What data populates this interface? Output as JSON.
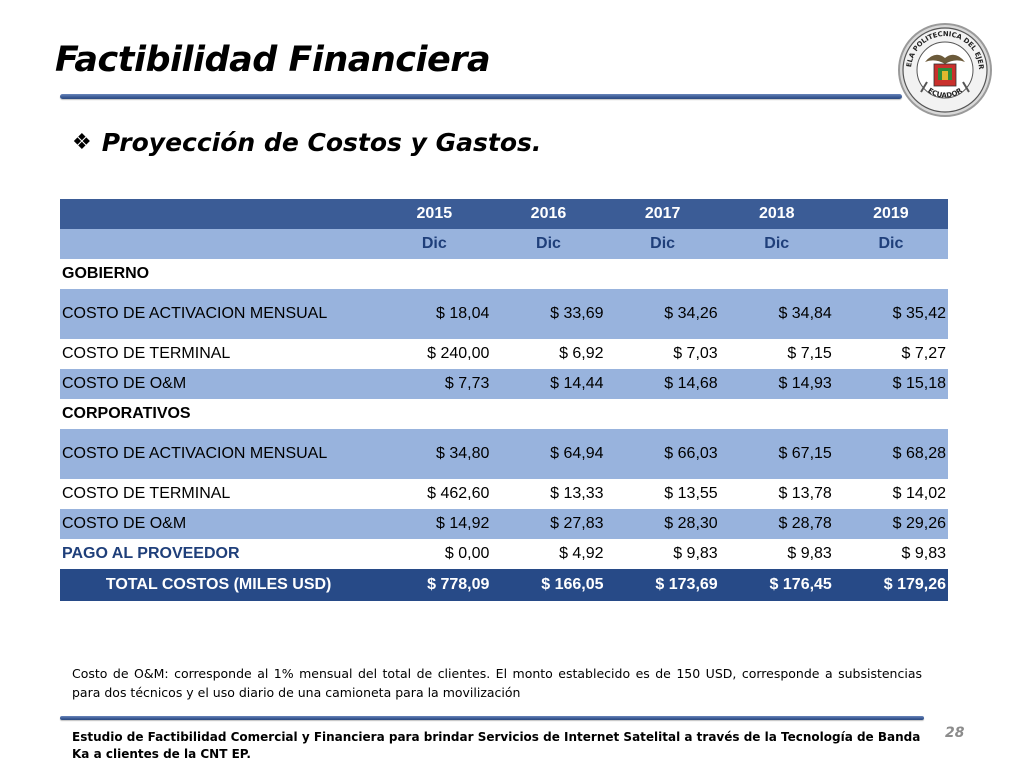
{
  "slide": {
    "title": "Factibilidad Financiera",
    "subtitle": "Proyección de Costos y Gastos.",
    "bullet_glyph": "❖",
    "page_number": "28"
  },
  "seal": {
    "text_top": "ESCUELA POLITECNICA DEL EJERCITO",
    "text_bottom": "ECUADOR"
  },
  "table": {
    "years": [
      "2015",
      "2016",
      "2017",
      "2018",
      "2019"
    ],
    "months": [
      "Dic",
      "Dic",
      "Dic",
      "Dic",
      "Dic"
    ],
    "sections": [
      {
        "name": "GOBIERNO",
        "rows": [
          {
            "label": "COSTO DE ACTIVACION MENSUAL",
            "values": [
              "$ 18,04",
              "$ 33,69",
              "$ 34,26",
              "$ 34,84",
              "$ 35,42"
            ]
          },
          {
            "label": "COSTO DE TERMINAL",
            "values": [
              "$ 240,00",
              "$ 6,92",
              "$ 7,03",
              "$ 7,15",
              "$ 7,27"
            ]
          },
          {
            "label": "COSTO DE O&M",
            "values": [
              "$ 7,73",
              "$ 14,44",
              "$ 14,68",
              "$ 14,93",
              "$ 15,18"
            ]
          }
        ]
      },
      {
        "name": "CORPORATIVOS",
        "rows": [
          {
            "label": "COSTO DE ACTIVACION MENSUAL",
            "values": [
              "$ 34,80",
              "$ 64,94",
              "$ 66,03",
              "$ 67,15",
              "$ 68,28"
            ]
          },
          {
            "label": "COSTO DE TERMINAL",
            "values": [
              "$ 462,60",
              "$ 13,33",
              "$ 13,55",
              "$ 13,78",
              "$ 14,02"
            ]
          },
          {
            "label": "COSTO DE O&M",
            "values": [
              "$ 14,92",
              "$ 27,83",
              "$ 28,30",
              "$ 28,78",
              "$ 29,26"
            ]
          }
        ]
      }
    ],
    "pago": {
      "label": "PAGO AL PROVEEDOR",
      "values": [
        "$ 0,00",
        "$ 4,92",
        "$ 9,83",
        "$ 9,83",
        "$ 9,83"
      ]
    },
    "total": {
      "label": "TOTAL COSTOS (MILES USD)",
      "values": [
        "$ 778,09",
        "$ 166,05",
        "$ 173,69",
        "$ 176,45",
        "$ 179,26"
      ]
    }
  },
  "note": "Costo de O&M: corresponde al 1% mensual del total de clientes. El monto establecido es de 150 USD, corresponde a subsistencias para dos técnicos  y el uso diario de una camioneta para la movilización",
  "footer": "Estudio de Factibilidad Comercial y Financiera para brindar Servicios de Internet Satelital a través de la Tecnología de Banda Ka a clientes de la CNT EP.",
  "colors": {
    "header_dark": "#3b5c96",
    "header_light": "#98b3dd",
    "total_bg": "#274a87",
    "accent_text": "#1f3f7a"
  }
}
